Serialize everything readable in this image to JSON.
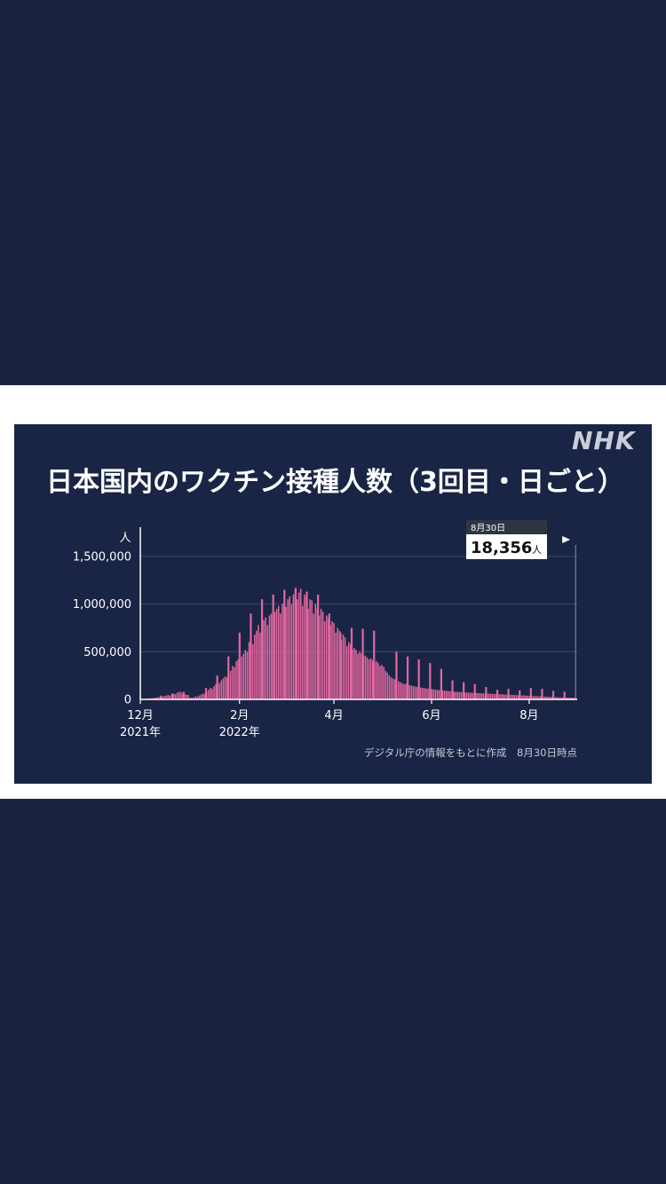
{
  "brand": "NHK",
  "title": "日本国内のワクチン接種人数（3回目・日ごと）",
  "source_note": "デジタル庁の情報をもとに作成　8月30日時点",
  "callout": {
    "date": "8月30日",
    "value": "18,356",
    "unit": "人"
  },
  "colors": {
    "bars": "#e0679f",
    "panel": "#1a2545",
    "background": "#19223d",
    "grid": "#3a4a6e"
  },
  "chart_data": {
    "type": "bar",
    "ylabel": "人",
    "ylim": [
      0,
      1750000
    ],
    "yticks": [
      0,
      500000,
      1000000,
      1500000
    ],
    "ytick_labels": [
      "0",
      "500,000",
      "1,000,000",
      "1,500,000"
    ],
    "xlim": [
      "2021-12-01",
      "2022-08-31"
    ],
    "xticks": [
      {
        "date": "2021-12-01",
        "label": "12月",
        "sublabel": "2021年"
      },
      {
        "date": "2022-02-01",
        "label": "2月",
        "sublabel": "2022年"
      },
      {
        "date": "2022-04-01",
        "label": "4月",
        "sublabel": ""
      },
      {
        "date": "2022-06-01",
        "label": "6月",
        "sublabel": ""
      },
      {
        "date": "2022-08-01",
        "label": "8月",
        "sublabel": ""
      }
    ],
    "grid": true,
    "series": [
      {
        "x_start": "2021-12-01",
        "x_end": "2022-08-30",
        "values_approx": [
          3000,
          4000,
          5000,
          6000,
          8000,
          10000,
          12000,
          15000,
          18000,
          20000,
          25000,
          30000,
          28000,
          35000,
          40000,
          45000,
          40000,
          50000,
          60000,
          55000,
          70000,
          80000,
          75000,
          60000,
          55000,
          50000,
          45000,
          20000,
          15000,
          20000,
          30000,
          30000,
          40000,
          50000,
          60000,
          55000,
          80000,
          100000,
          120000,
          110000,
          140000,
          160000,
          180000,
          170000,
          200000,
          220000,
          240000,
          230000,
          280000,
          300000,
          350000,
          340000,
          400000,
          420000,
          380000,
          450000,
          480000,
          520000,
          500000,
          600000,
          620000,
          580000,
          680000,
          720000,
          780000,
          700000,
          800000,
          830000,
          860000,
          780000,
          880000,
          900000,
          850000,
          920000,
          950000,
          980000,
          900000,
          1000000,
          1020000,
          970000,
          1050000,
          1080000,
          1000000,
          1100000,
          1150000,
          1050000,
          1120000,
          1160000,
          980000,
          1100000,
          1080000,
          950000,
          1050000,
          1040000,
          900000,
          1000000,
          960000,
          880000,
          950000,
          920000,
          820000,
          880000,
          850000,
          780000,
          820000,
          800000,
          700000,
          750000,
          720000,
          620000,
          680000,
          650000,
          560000,
          600000,
          580000,
          520000,
          540000,
          520000,
          480000,
          500000,
          480000,
          450000,
          460000,
          440000,
          420000,
          430000,
          410000,
          380000,
          400000,
          380000,
          350000,
          360000,
          340000,
          300000,
          280000,
          250000,
          230000,
          220000,
          210000,
          200000,
          190000,
          180000,
          170000,
          160000,
          165000,
          155000,
          150000,
          145000,
          140000,
          135000,
          130000,
          128000,
          125000,
          120000,
          118000,
          115000,
          112000,
          110000,
          108000,
          105000,
          102000,
          100000,
          98000,
          96000,
          94000,
          92000,
          90000,
          88000,
          86000,
          84000,
          82000,
          80000,
          79000,
          78000,
          76000,
          75000,
          74000,
          72000,
          71000,
          70000,
          69000,
          68000,
          67000,
          66000,
          65000,
          64000,
          63000,
          62000,
          61000,
          60000,
          59000,
          58000,
          57000,
          56000,
          55000,
          54000,
          53000,
          52000,
          51000,
          50000,
          49000,
          48000,
          47000,
          46000,
          45000,
          44000,
          43000,
          42000,
          41000,
          40000,
          39000,
          38000,
          37000,
          36000,
          35000,
          34000,
          33000,
          32000,
          31000,
          30000,
          29000,
          28000,
          27000,
          26000,
          25000,
          24000,
          23000,
          22000,
          21000,
          20000,
          19500,
          19000,
          18800,
          18600,
          18500,
          18400,
          18356
        ],
        "weekly_peaks": [
          {
            "date": "2021-12-14",
            "value": 40000
          },
          {
            "date": "2021-12-21",
            "value": 60000
          },
          {
            "date": "2021-12-28",
            "value": 80000
          },
          {
            "date": "2022-01-11",
            "value": 120000
          },
          {
            "date": "2022-01-18",
            "value": 250000
          },
          {
            "date": "2022-01-25",
            "value": 450000
          },
          {
            "date": "2022-02-01",
            "value": 700000
          },
          {
            "date": "2022-02-08",
            "value": 900000
          },
          {
            "date": "2022-02-15",
            "value": 1050000
          },
          {
            "date": "2022-02-22",
            "value": 1100000
          },
          {
            "date": "2022-03-01",
            "value": 1150000
          },
          {
            "date": "2022-03-08",
            "value": 1170000
          },
          {
            "date": "2022-03-15",
            "value": 1130000
          },
          {
            "date": "2022-03-22",
            "value": 1100000
          },
          {
            "date": "2022-03-29",
            "value": 900000
          },
          {
            "date": "2022-04-05",
            "value": 700000
          },
          {
            "date": "2022-04-12",
            "value": 750000
          },
          {
            "date": "2022-04-19",
            "value": 740000
          },
          {
            "date": "2022-04-26",
            "value": 720000
          },
          {
            "date": "2022-05-10",
            "value": 500000
          },
          {
            "date": "2022-05-17",
            "value": 450000
          },
          {
            "date": "2022-05-24",
            "value": 420000
          },
          {
            "date": "2022-05-31",
            "value": 380000
          },
          {
            "date": "2022-06-07",
            "value": 320000
          },
          {
            "date": "2022-06-14",
            "value": 200000
          },
          {
            "date": "2022-06-21",
            "value": 180000
          },
          {
            "date": "2022-06-28",
            "value": 160000
          },
          {
            "date": "2022-07-05",
            "value": 130000
          },
          {
            "date": "2022-07-12",
            "value": 100000
          },
          {
            "date": "2022-07-19",
            "value": 110000
          },
          {
            "date": "2022-07-26",
            "value": 95000
          },
          {
            "date": "2022-08-02",
            "value": 120000
          },
          {
            "date": "2022-08-09",
            "value": 110000
          },
          {
            "date": "2022-08-16",
            "value": 90000
          },
          {
            "date": "2022-08-23",
            "value": 80000
          },
          {
            "date": "2022-08-30",
            "value": 18356
          }
        ]
      }
    ]
  }
}
